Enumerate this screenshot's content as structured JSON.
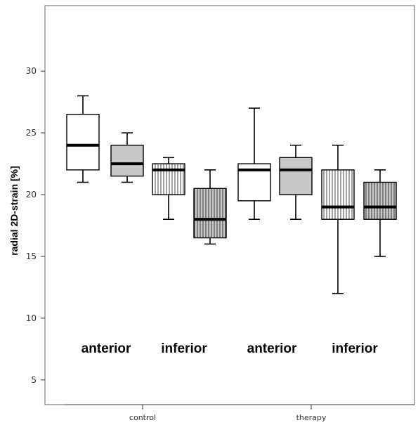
{
  "chart_data": {
    "type": "box",
    "ylabel": "radial 2D-strain [%]",
    "ylim": [
      3,
      35.3
    ],
    "yticks": [
      5,
      10,
      15,
      20,
      25,
      30
    ],
    "categories": [
      "control",
      "therapy"
    ],
    "group_labels": [
      "anterior",
      "inferior",
      "anterior",
      "inferior"
    ],
    "grid": false,
    "boxes": [
      {
        "category": "control",
        "region": "anterior",
        "fill": "white",
        "min": 21,
        "q1": 22,
        "median": 24,
        "q3": 26.5,
        "max": 28
      },
      {
        "category": "control",
        "region": "anterior",
        "fill": "grey",
        "min": 21,
        "q1": 21.5,
        "median": 22.5,
        "q3": 24,
        "max": 25
      },
      {
        "category": "control",
        "region": "inferior",
        "fill": "white-striped",
        "min": 18,
        "q1": 20,
        "median": 22,
        "q3": 22.5,
        "max": 23
      },
      {
        "category": "control",
        "region": "inferior",
        "fill": "grey-striped",
        "min": 16,
        "q1": 16.5,
        "median": 18,
        "q3": 20.5,
        "max": 22
      },
      {
        "category": "therapy",
        "region": "anterior",
        "fill": "white",
        "min": 18,
        "q1": 19.5,
        "median": 22,
        "q3": 22.5,
        "max": 27
      },
      {
        "category": "therapy",
        "region": "anterior",
        "fill": "grey",
        "min": 18,
        "q1": 20,
        "median": 22,
        "q3": 23,
        "max": 24
      },
      {
        "category": "therapy",
        "region": "inferior",
        "fill": "white-striped",
        "min": 12,
        "q1": 18,
        "median": 19,
        "q3": 22,
        "max": 24
      },
      {
        "category": "therapy",
        "region": "inferior",
        "fill": "grey-striped",
        "min": 15,
        "q1": 18,
        "median": 19,
        "q3": 21,
        "max": 22
      }
    ]
  }
}
